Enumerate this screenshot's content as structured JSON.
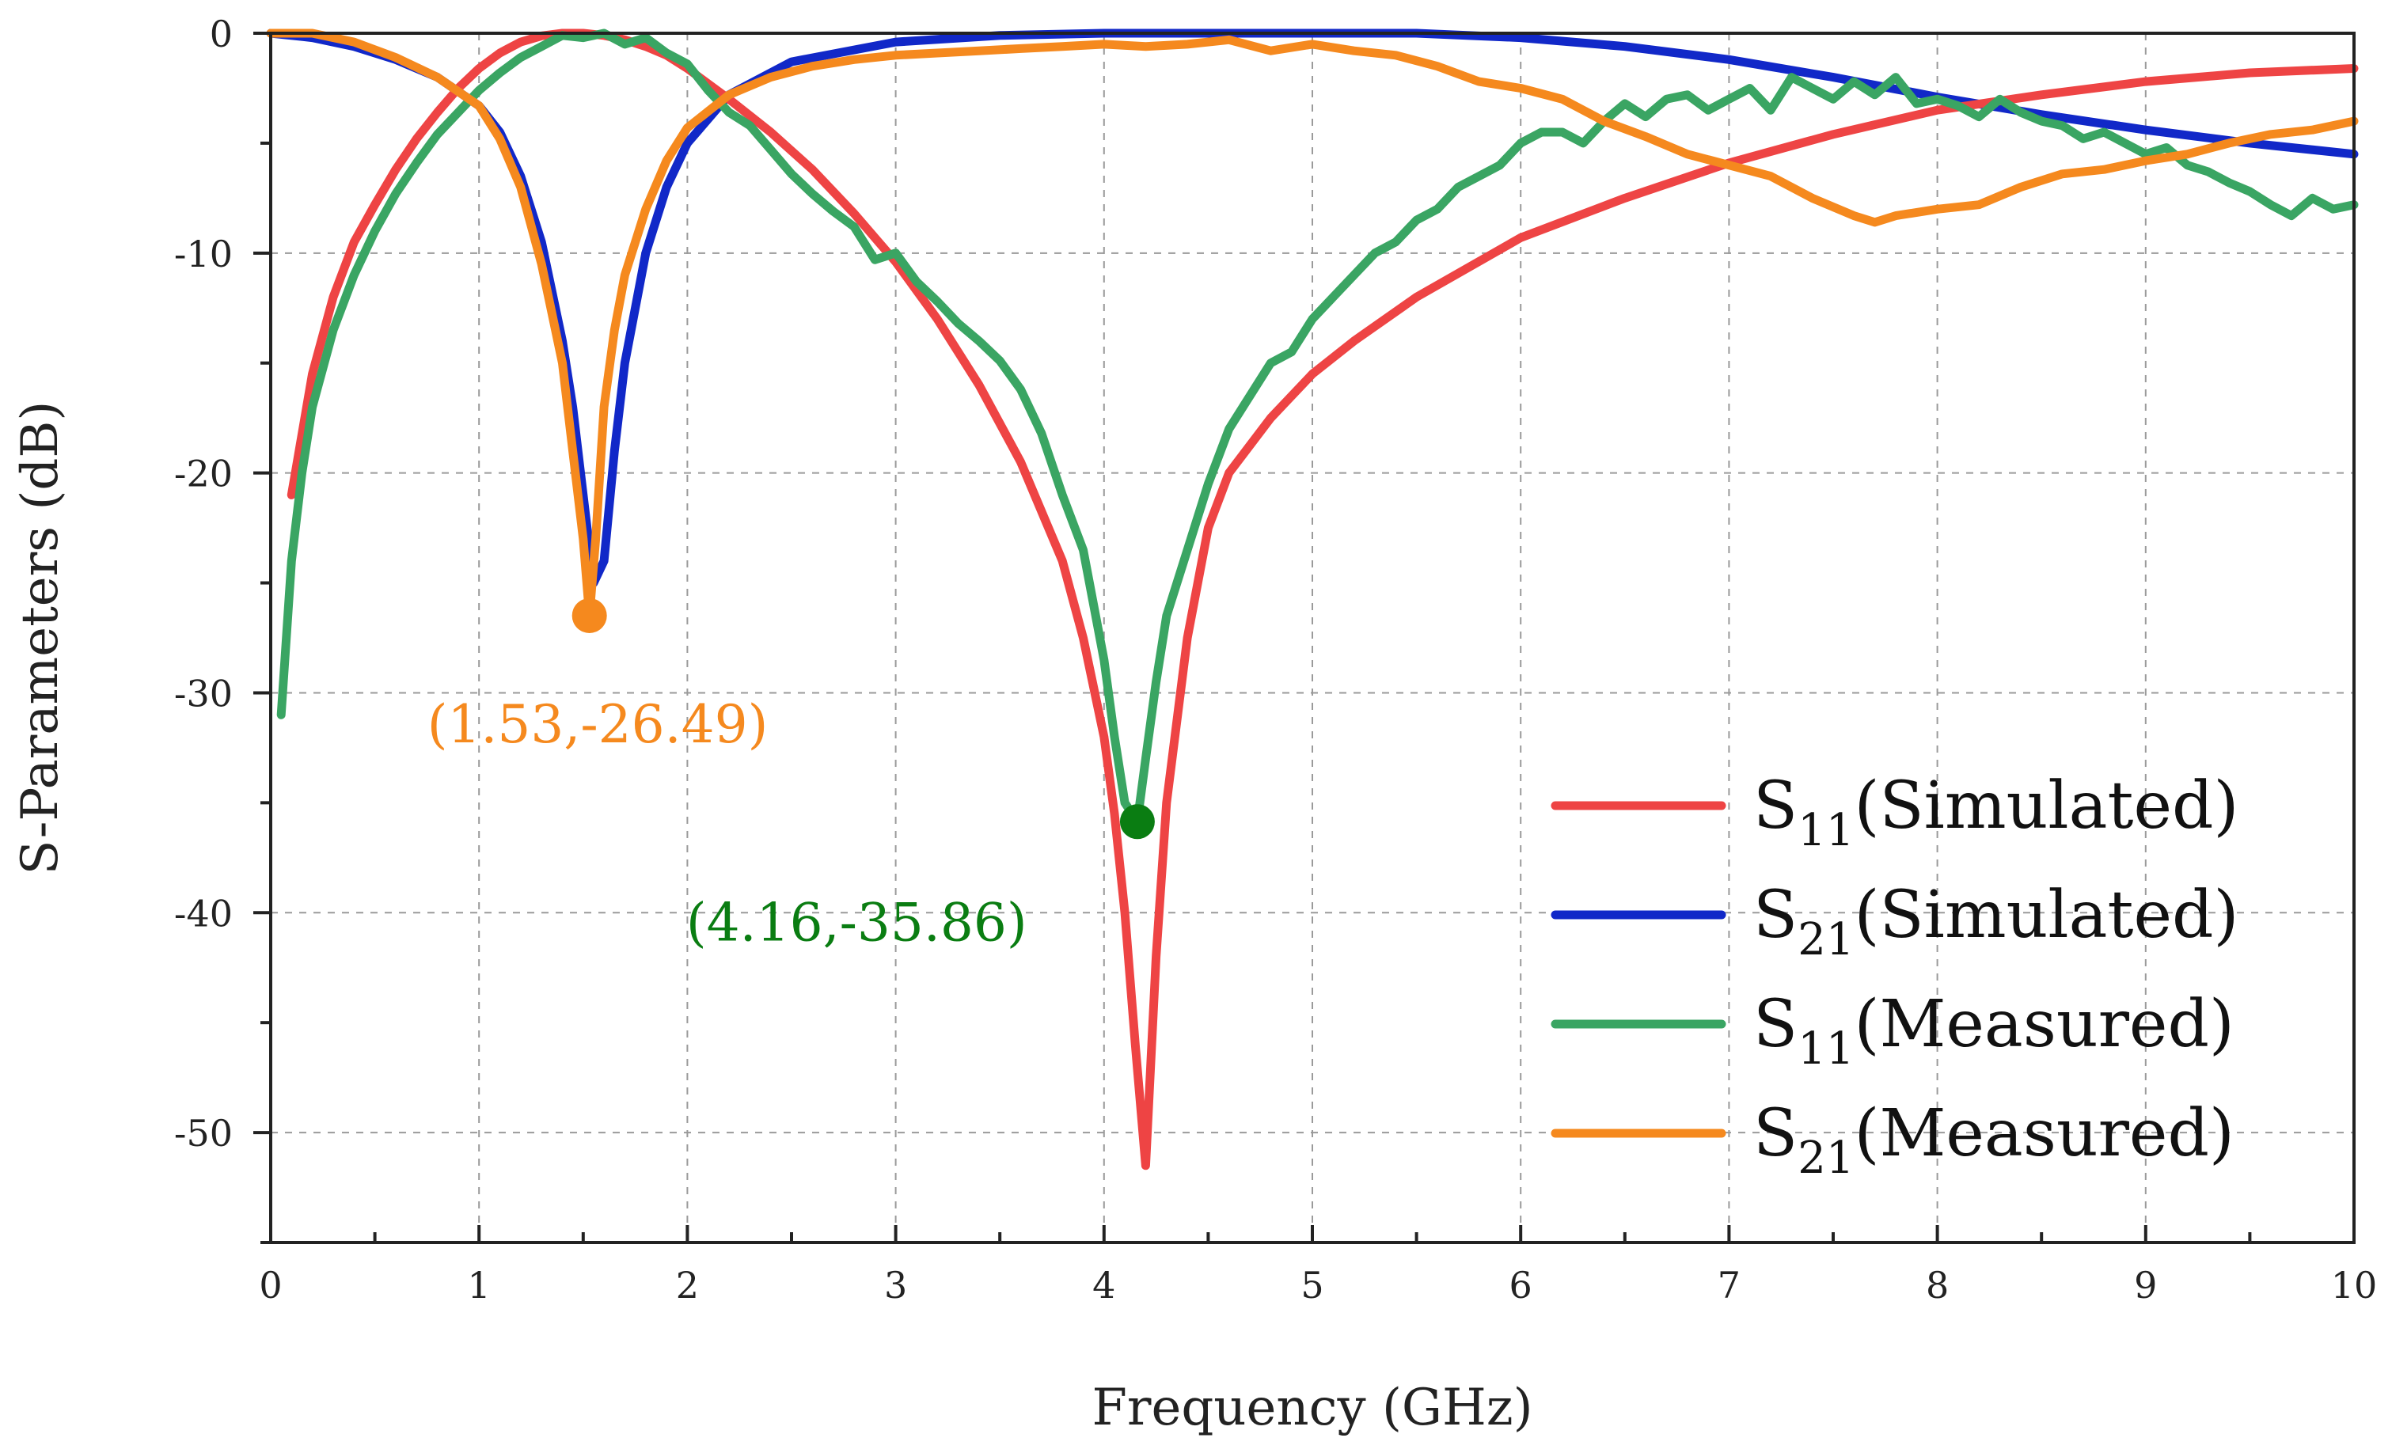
{
  "chart_data": {
    "type": "line",
    "title": "",
    "xlabel": "Frequency (GHz)",
    "ylabel": "S-Parameters (dB)",
    "xlim": [
      0,
      10
    ],
    "ylim": [
      -55,
      0
    ],
    "xticks": [
      0,
      1,
      2,
      3,
      4,
      5,
      6,
      7,
      8,
      9,
      10
    ],
    "yticks": [
      0,
      -10,
      -20,
      -30,
      -40,
      -50
    ],
    "xtick_labels": [
      "0",
      "1",
      "2",
      "3",
      "4",
      "5",
      "6",
      "7",
      "8",
      "9",
      "10"
    ],
    "ytick_labels": [
      "0",
      "-10",
      "-20",
      "-30",
      "-40",
      "-50"
    ],
    "grid": true,
    "legend_position": "lower-right",
    "series": [
      {
        "name": "S11(Simulated)",
        "label_main": "S",
        "label_sub": "11",
        "label_tail": "(Simulated)",
        "color": "#ee4444",
        "x": [
          0.1,
          0.2,
          0.3,
          0.4,
          0.5,
          0.6,
          0.7,
          0.8,
          0.9,
          1.0,
          1.1,
          1.2,
          1.3,
          1.4,
          1.5,
          1.6,
          1.7,
          1.8,
          1.9,
          2.0,
          2.2,
          2.4,
          2.6,
          2.8,
          3.0,
          3.2,
          3.4,
          3.6,
          3.8,
          3.9,
          4.0,
          4.05,
          4.1,
          4.15,
          4.2,
          4.25,
          4.3,
          4.4,
          4.5,
          4.6,
          4.8,
          5.0,
          5.2,
          5.5,
          6.0,
          6.5,
          7.0,
          7.5,
          8.0,
          8.5,
          9.0,
          9.5,
          10.0
        ],
        "y": [
          -21,
          -15.5,
          -12,
          -9.5,
          -7.8,
          -6.2,
          -4.8,
          -3.6,
          -2.5,
          -1.6,
          -0.9,
          -0.4,
          -0.12,
          0,
          0,
          -0.1,
          -0.3,
          -0.6,
          -1.0,
          -1.6,
          -3.0,
          -4.5,
          -6.2,
          -8.2,
          -10.4,
          -13,
          -16,
          -19.5,
          -24,
          -27.5,
          -32,
          -35.5,
          -40,
          -46,
          -51.5,
          -42,
          -35,
          -27.5,
          -22.5,
          -20,
          -17.5,
          -15.5,
          -14,
          -12,
          -9.3,
          -7.5,
          -5.9,
          -4.6,
          -3.5,
          -2.8,
          -2.2,
          -1.8,
          -1.6
        ]
      },
      {
        "name": "S21(Simulated)",
        "label_main": "S",
        "label_sub": "21",
        "label_tail": "(Simulated)",
        "color": "#1128c8",
        "x": [
          0,
          0.2,
          0.4,
          0.6,
          0.8,
          1.0,
          1.1,
          1.2,
          1.3,
          1.4,
          1.45,
          1.5,
          1.55,
          1.6,
          1.65,
          1.7,
          1.8,
          1.9,
          2.0,
          2.2,
          2.5,
          3.0,
          3.5,
          4.0,
          4.5,
          5.0,
          5.5,
          6.0,
          6.5,
          7.0,
          7.5,
          8.0,
          8.5,
          9.0,
          9.5,
          10.0
        ],
        "y": [
          0,
          -0.2,
          -0.6,
          -1.2,
          -2.0,
          -3.3,
          -4.5,
          -6.5,
          -9.5,
          -14,
          -17,
          -21,
          -25,
          -24,
          -19,
          -15,
          -10,
          -7,
          -5,
          -2.8,
          -1.3,
          -0.4,
          -0.1,
          0,
          0,
          0,
          0,
          -0.2,
          -0.6,
          -1.2,
          -2.0,
          -2.9,
          -3.7,
          -4.4,
          -5.0,
          -5.5
        ]
      },
      {
        "name": "S11(Measured)",
        "label_main": "S",
        "label_sub": "11",
        "label_tail": "(Measured)",
        "color": "#3aa563",
        "x": [
          0.05,
          0.1,
          0.15,
          0.2,
          0.3,
          0.4,
          0.5,
          0.6,
          0.7,
          0.8,
          0.9,
          1.0,
          1.1,
          1.2,
          1.3,
          1.4,
          1.5,
          1.6,
          1.7,
          1.8,
          1.9,
          2.0,
          2.1,
          2.2,
          2.3,
          2.4,
          2.5,
          2.6,
          2.7,
          2.8,
          2.9,
          3.0,
          3.1,
          3.2,
          3.3,
          3.4,
          3.5,
          3.6,
          3.7,
          3.8,
          3.9,
          4.0,
          4.05,
          4.1,
          4.16,
          4.2,
          4.25,
          4.3,
          4.4,
          4.5,
          4.6,
          4.7,
          4.8,
          4.9,
          5.0,
          5.1,
          5.2,
          5.3,
          5.4,
          5.5,
          5.6,
          5.7,
          5.8,
          5.9,
          6.0,
          6.1,
          6.2,
          6.3,
          6.4,
          6.5,
          6.6,
          6.7,
          6.8,
          6.9,
          7.0,
          7.1,
          7.2,
          7.3,
          7.4,
          7.5,
          7.6,
          7.7,
          7.8,
          7.9,
          8.0,
          8.1,
          8.2,
          8.3,
          8.4,
          8.5,
          8.6,
          8.7,
          8.8,
          8.9,
          9.0,
          9.1,
          9.2,
          9.3,
          9.4,
          9.5,
          9.6,
          9.7,
          9.8,
          9.9,
          10.0
        ],
        "y": [
          -31,
          -24,
          -20,
          -17,
          -13.5,
          -11,
          -9,
          -7.3,
          -5.9,
          -4.6,
          -3.6,
          -2.6,
          -1.8,
          -1.1,
          -0.6,
          -0.1,
          -0.2,
          0,
          -0.5,
          -0.2,
          -0.9,
          -1.4,
          -2.6,
          -3.6,
          -4.2,
          -5.3,
          -6.4,
          -7.3,
          -8.1,
          -8.8,
          -10.3,
          -10.0,
          -11.3,
          -12.2,
          -13.2,
          -14.0,
          -14.9,
          -16.2,
          -18.2,
          -21.0,
          -23.5,
          -28.5,
          -32.0,
          -35.0,
          -35.86,
          -33.0,
          -29.5,
          -26.5,
          -23.5,
          -20.5,
          -18.0,
          -16.5,
          -15.0,
          -14.5,
          -13.0,
          -12.0,
          -11.0,
          -10.0,
          -9.5,
          -8.5,
          -8.0,
          -7.0,
          -6.5,
          -6.0,
          -5.0,
          -4.5,
          -4.5,
          -5.0,
          -4.0,
          -3.2,
          -3.8,
          -3.0,
          -2.8,
          -3.5,
          -3.0,
          -2.5,
          -3.5,
          -2.0,
          -2.5,
          -3.0,
          -2.2,
          -2.8,
          -2.0,
          -3.2,
          -3.0,
          -3.3,
          -3.8,
          -3.0,
          -3.6,
          -4.0,
          -4.2,
          -4.8,
          -4.5,
          -5.0,
          -5.5,
          -5.2,
          -6.0,
          -6.3,
          -6.8,
          -7.2,
          -7.8,
          -8.3,
          -7.5,
          -8.0,
          -7.8
        ]
      },
      {
        "name": "S21(Measured)",
        "label_main": "S",
        "label_sub": "21",
        "label_tail": "(Measured)",
        "color": "#f5891e",
        "x": [
          0,
          0.2,
          0.4,
          0.6,
          0.8,
          1.0,
          1.1,
          1.2,
          1.3,
          1.4,
          1.45,
          1.5,
          1.53,
          1.56,
          1.6,
          1.65,
          1.7,
          1.8,
          1.9,
          2.0,
          2.2,
          2.4,
          2.6,
          2.8,
          3.0,
          3.2,
          3.4,
          3.6,
          3.8,
          4.0,
          4.2,
          4.4,
          4.6,
          4.8,
          5.0,
          5.2,
          5.4,
          5.6,
          5.8,
          6.0,
          6.2,
          6.4,
          6.6,
          6.8,
          7.0,
          7.2,
          7.4,
          7.6,
          7.7,
          7.8,
          8.0,
          8.2,
          8.4,
          8.6,
          8.8,
          9.0,
          9.2,
          9.4,
          9.6,
          9.8,
          10.0
        ],
        "y": [
          0,
          0,
          -0.4,
          -1.1,
          -2.0,
          -3.3,
          -4.8,
          -7.0,
          -10.5,
          -15,
          -19,
          -23,
          -26.49,
          -23,
          -17,
          -13.5,
          -11,
          -8,
          -5.8,
          -4.3,
          -2.8,
          -2.0,
          -1.5,
          -1.2,
          -1.0,
          -0.9,
          -0.8,
          -0.7,
          -0.6,
          -0.5,
          -0.6,
          -0.5,
          -0.3,
          -0.8,
          -0.5,
          -0.8,
          -1.0,
          -1.5,
          -2.2,
          -2.5,
          -3.0,
          -4.0,
          -4.7,
          -5.5,
          -6.0,
          -6.5,
          -7.5,
          -8.3,
          -8.6,
          -8.3,
          -8.0,
          -7.8,
          -7.0,
          -6.4,
          -6.2,
          -5.8,
          -5.5,
          -5.0,
          -4.6,
          -4.4,
          -4.0
        ]
      }
    ],
    "annotations": [
      {
        "text": "(1.53,-26.49)",
        "x": 1.53,
        "y": -26.49,
        "color": "#f5891e"
      },
      {
        "text": "(4.16,-35.86)",
        "x": 4.16,
        "y": -35.86,
        "color": "#0a7d12"
      }
    ]
  }
}
